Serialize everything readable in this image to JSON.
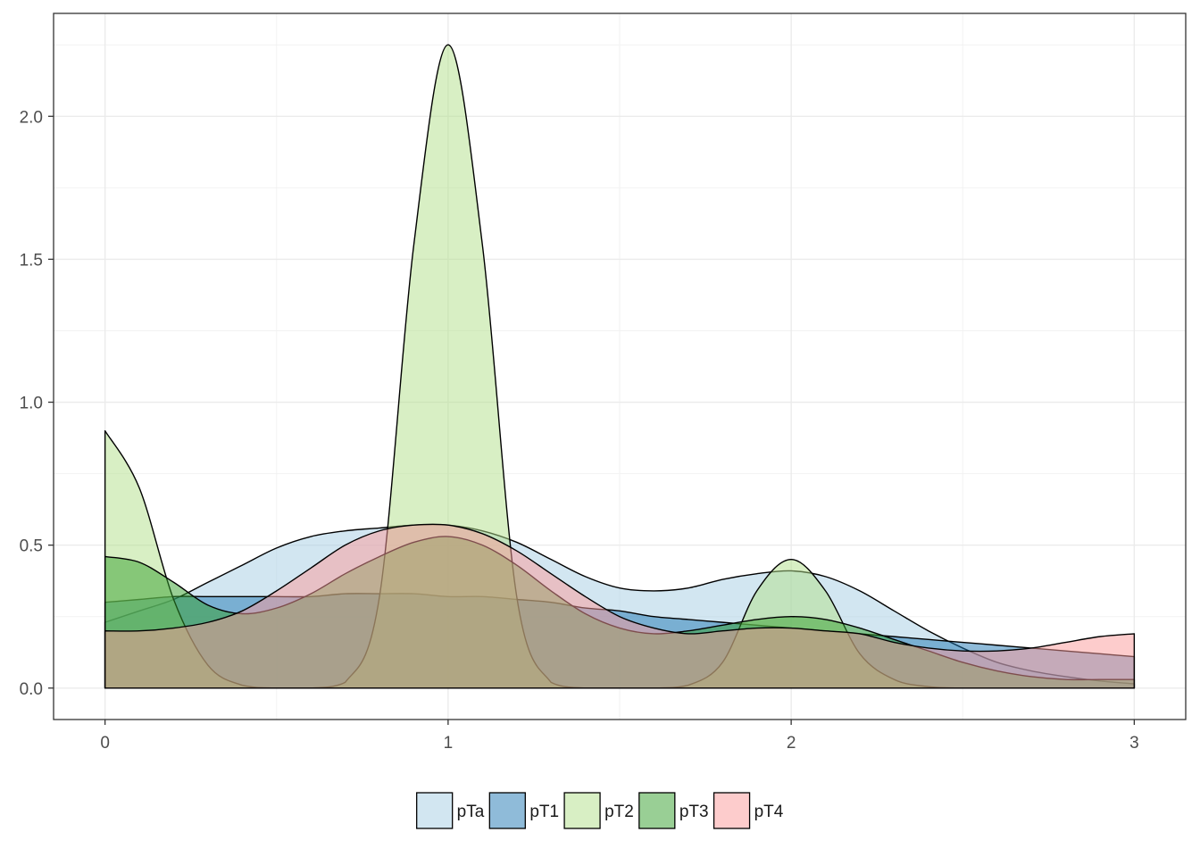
{
  "chart_data": {
    "type": "area",
    "title": "",
    "xlabel": "",
    "ylabel": "",
    "xlim": [
      -0.15,
      3.15
    ],
    "ylim": [
      -0.11,
      2.36
    ],
    "x_ticks": [
      0,
      1,
      2,
      3
    ],
    "x_tick_labels": [
      "0",
      "1",
      "2",
      "3"
    ],
    "y_ticks": [
      0.0,
      0.5,
      1.0,
      1.5,
      2.0
    ],
    "y_tick_labels": [
      "0.0",
      "0.5",
      "1.0",
      "1.5",
      "2.0"
    ],
    "grid": true,
    "legend_position": "bottom",
    "x": [
      0,
      0.1,
      0.2,
      0.3,
      0.4,
      0.5,
      0.6,
      0.7,
      0.8,
      0.9,
      1.0,
      1.1,
      1.2,
      1.3,
      1.4,
      1.5,
      1.6,
      1.7,
      1.8,
      1.9,
      2.0,
      2.1,
      2.2,
      2.3,
      2.4,
      2.5,
      2.6,
      2.7,
      2.8,
      2.9,
      3.0
    ],
    "series": [
      {
        "name": "pTa",
        "color": "#a6cee3",
        "values": [
          0.23,
          0.27,
          0.31,
          0.37,
          0.43,
          0.49,
          0.53,
          0.55,
          0.56,
          0.57,
          0.57,
          0.55,
          0.51,
          0.45,
          0.39,
          0.35,
          0.34,
          0.35,
          0.38,
          0.4,
          0.41,
          0.39,
          0.34,
          0.27,
          0.2,
          0.14,
          0.09,
          0.06,
          0.04,
          0.025,
          0.015
        ]
      },
      {
        "name": "pT1",
        "color": "#1f78b4",
        "values": [
          0.3,
          0.31,
          0.32,
          0.32,
          0.32,
          0.32,
          0.32,
          0.33,
          0.33,
          0.33,
          0.32,
          0.32,
          0.31,
          0.3,
          0.28,
          0.27,
          0.25,
          0.24,
          0.23,
          0.22,
          0.21,
          0.2,
          0.19,
          0.18,
          0.17,
          0.16,
          0.15,
          0.14,
          0.13,
          0.12,
          0.11
        ]
      },
      {
        "name": "pT2",
        "color": "#b2df8a",
        "values": [
          0.9,
          0.7,
          0.31,
          0.08,
          0.01,
          0.0,
          0.0,
          0.02,
          0.32,
          1.55,
          2.25,
          1.55,
          0.32,
          0.02,
          0.0,
          0.0,
          0.0,
          0.01,
          0.09,
          0.34,
          0.45,
          0.34,
          0.12,
          0.03,
          0.005,
          0.0,
          0.0,
          0.0,
          0.0,
          0.0,
          0.0
        ]
      },
      {
        "name": "pT3",
        "color": "#33a02c",
        "values": [
          0.46,
          0.44,
          0.37,
          0.29,
          0.26,
          0.28,
          0.33,
          0.4,
          0.46,
          0.51,
          0.53,
          0.5,
          0.43,
          0.34,
          0.26,
          0.21,
          0.19,
          0.2,
          0.22,
          0.24,
          0.25,
          0.24,
          0.21,
          0.17,
          0.13,
          0.09,
          0.06,
          0.04,
          0.03,
          0.03,
          0.03
        ]
      },
      {
        "name": "pT4",
        "color": "#fb9a99",
        "values": [
          0.2,
          0.2,
          0.21,
          0.23,
          0.27,
          0.34,
          0.42,
          0.5,
          0.55,
          0.57,
          0.57,
          0.54,
          0.48,
          0.4,
          0.32,
          0.25,
          0.21,
          0.19,
          0.2,
          0.21,
          0.21,
          0.2,
          0.19,
          0.16,
          0.14,
          0.13,
          0.13,
          0.14,
          0.16,
          0.18,
          0.19
        ]
      }
    ]
  }
}
